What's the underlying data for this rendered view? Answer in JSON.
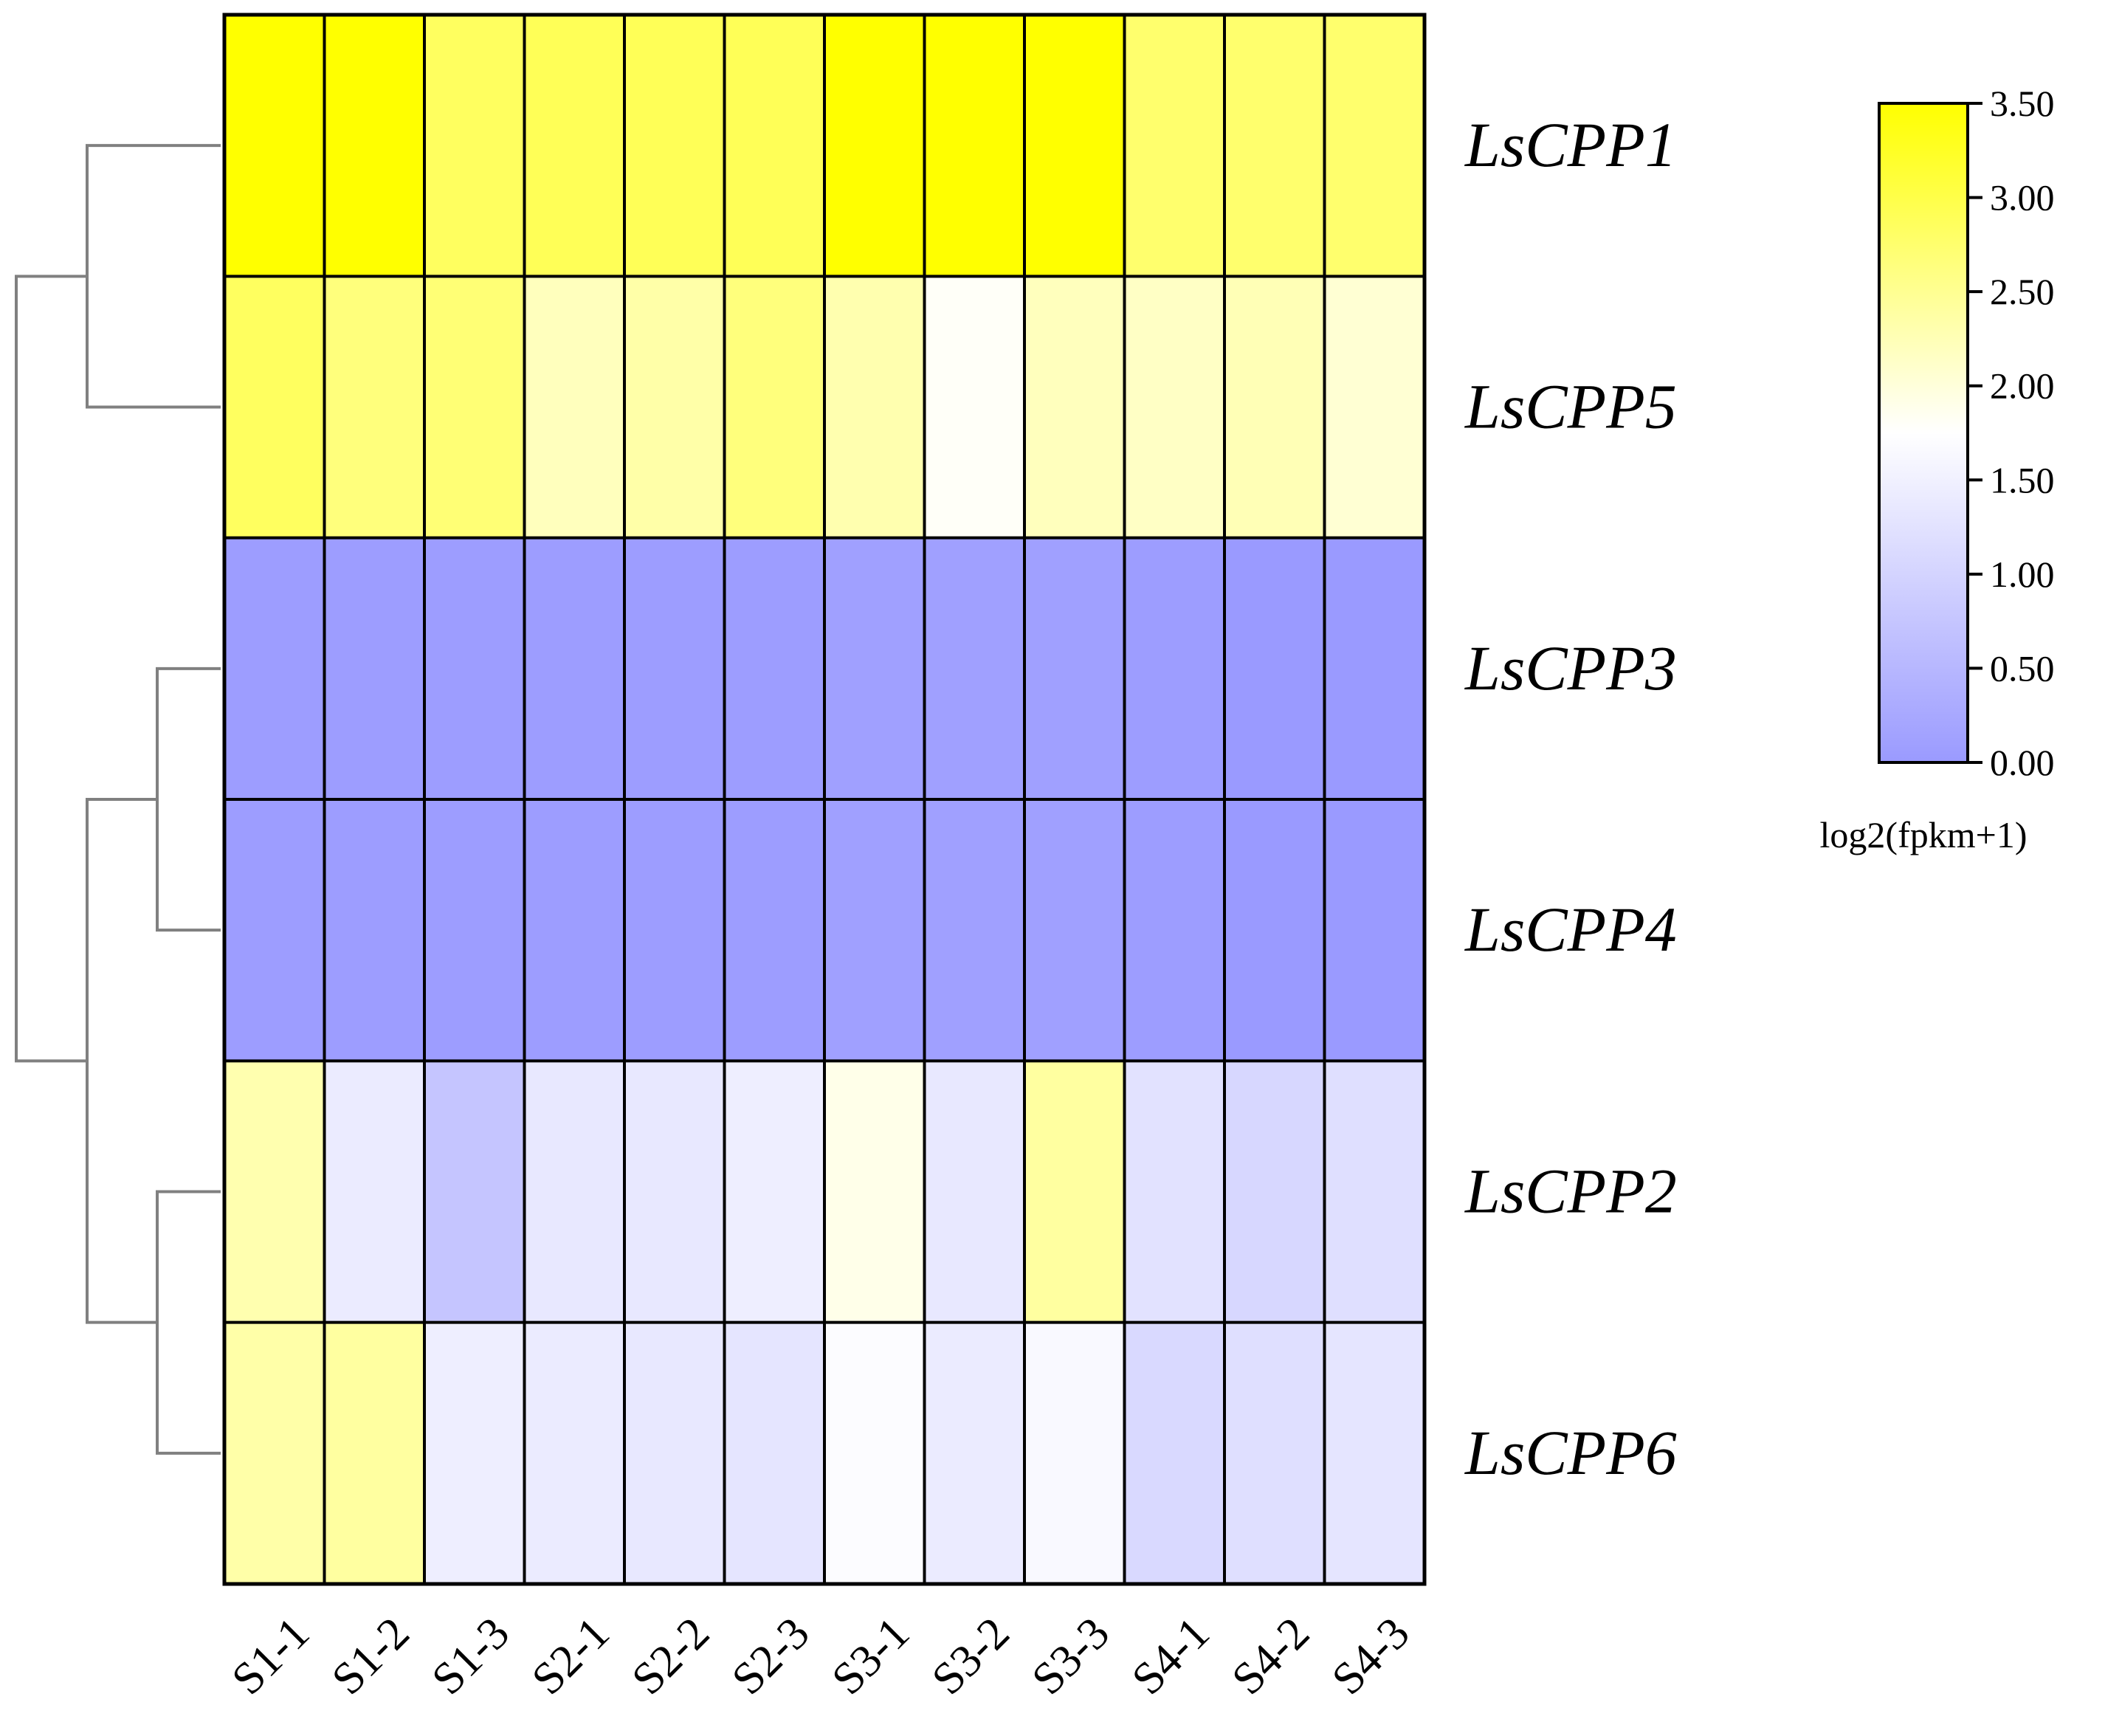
{
  "chart_data": {
    "type": "heatmap",
    "title": "",
    "columns": [
      "S1-1",
      "S1-2",
      "S1-3",
      "S2-1",
      "S2-2",
      "S2-3",
      "S3-1",
      "S3-2",
      "S3-3",
      "S4-1",
      "S4-2",
      "S4-3"
    ],
    "rows": [
      "LsCPP1",
      "LsCPP5",
      "LsCPP3",
      "LsCPP4",
      "LsCPP2",
      "LsCPP6"
    ],
    "values": [
      [
        3.5,
        3.5,
        2.85,
        2.9,
        2.9,
        2.9,
        3.5,
        3.5,
        3.5,
        2.75,
        2.75,
        2.75
      ],
      [
        2.85,
        2.65,
        2.7,
        2.2,
        2.35,
        2.65,
        2.3,
        1.8,
        2.2,
        2.15,
        2.25,
        2.05
      ],
      [
        0.05,
        0.05,
        0.05,
        0.05,
        0.05,
        0.05,
        0.1,
        0.1,
        0.1,
        0.05,
        0.0,
        0.0
      ],
      [
        0.05,
        0.05,
        0.05,
        0.05,
        0.05,
        0.05,
        0.1,
        0.1,
        0.1,
        0.05,
        0.0,
        0.0
      ],
      [
        2.3,
        1.4,
        0.75,
        1.35,
        1.35,
        1.45,
        1.9,
        1.35,
        2.4,
        1.25,
        1.05,
        1.2
      ],
      [
        2.35,
        2.4,
        1.45,
        1.4,
        1.35,
        1.3,
        1.7,
        1.4,
        1.65,
        1.1,
        1.2,
        1.3
      ]
    ],
    "colorbar": {
      "title": "log2(fpkm+1)",
      "min": 0.0,
      "max": 3.5,
      "ticks": [
        "0.00",
        "0.50",
        "1.00",
        "1.50",
        "2.00",
        "2.50",
        "3.00",
        "3.50"
      ],
      "colors": {
        "low": "#9a9aff",
        "mid": "#ffffff",
        "high": "#ffff00"
      },
      "mid_value": 1.75
    },
    "dendrogram": {
      "side": "left",
      "line_color": "#808080",
      "groups": [
        [
          "LsCPP1",
          "LsCPP5"
        ],
        [
          [
            "LsCPP3",
            "LsCPP4"
          ],
          [
            "LsCPP2",
            "LsCPP6"
          ]
        ]
      ]
    },
    "grid": true,
    "legend": "right"
  }
}
